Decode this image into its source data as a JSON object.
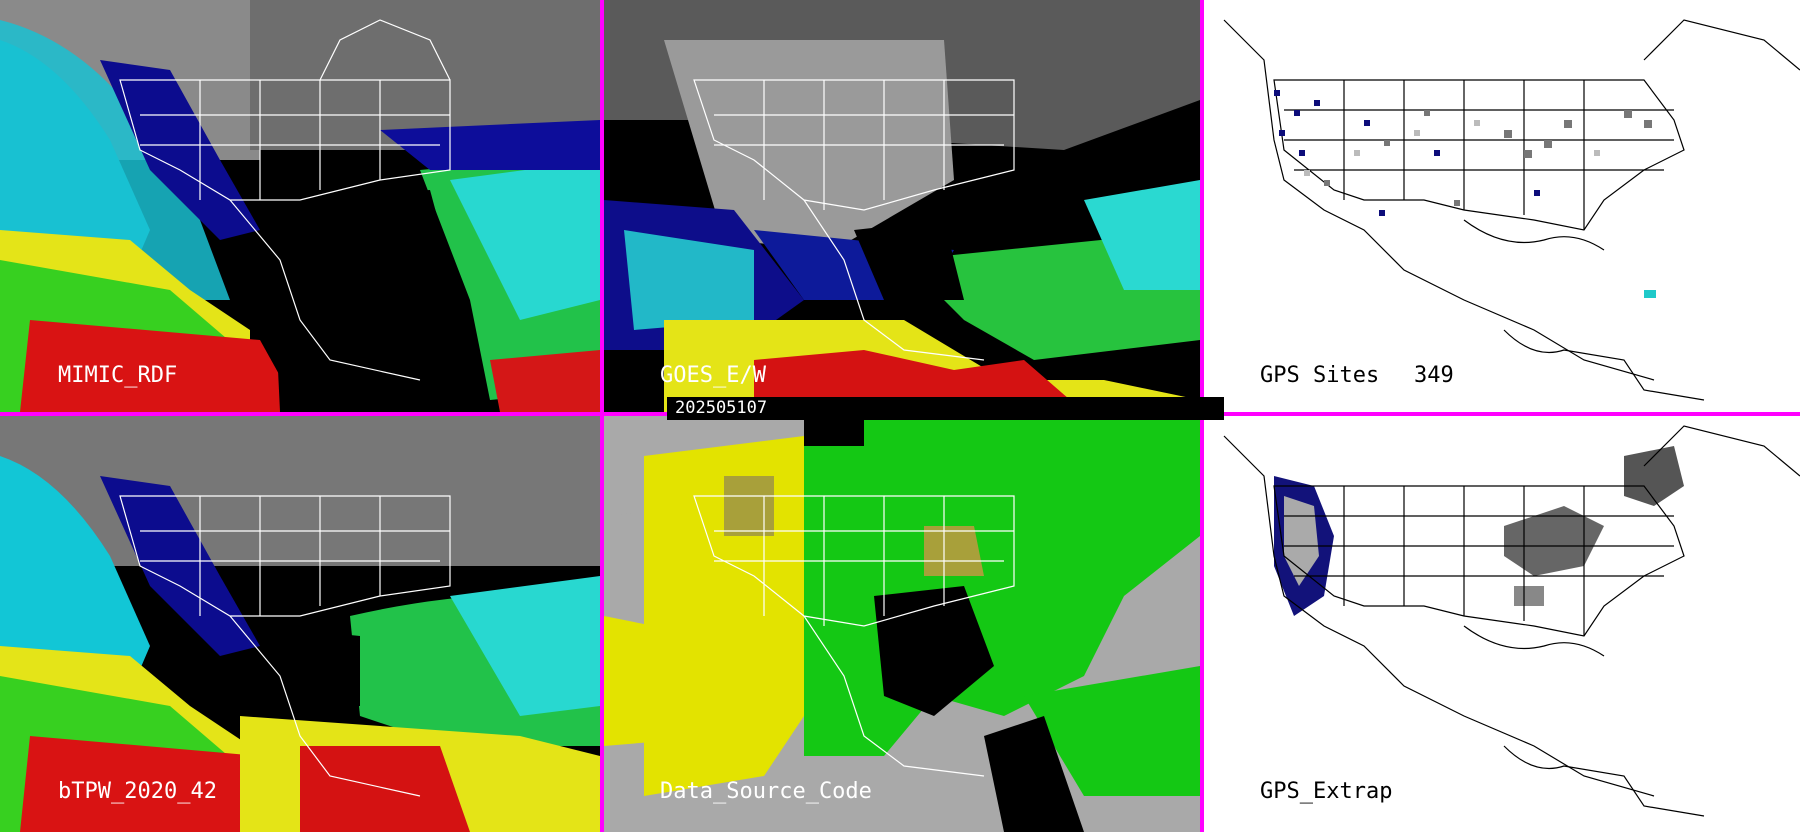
{
  "panels": [
    {
      "id": "mimic",
      "label": "MIMIC_RDF"
    },
    {
      "id": "goes",
      "label": "GOES_E/W"
    },
    {
      "id": "gps_sites",
      "label": "GPS Sites",
      "count": "349"
    },
    {
      "id": "btpw",
      "label": "bTPW_2020_42"
    },
    {
      "id": "source",
      "label": "Data_Source_Code"
    },
    {
      "id": "gps_extrap",
      "label": "GPS_Extrap"
    }
  ],
  "date_label": "202505107",
  "colors": {
    "separator": "#ff00ff",
    "tpw_scale": [
      "#000000",
      "#0a0a8c",
      "#1f3fd6",
      "#1ec8e6",
      "#33e0d8",
      "#22c846",
      "#7ade12",
      "#e8e817",
      "#e01414",
      "#c2149a"
    ],
    "source_codes": {
      "yellow": "#e3e300",
      "green": "#14c814",
      "gray": "#a9a9a9",
      "olive": "#a8a03a"
    }
  }
}
